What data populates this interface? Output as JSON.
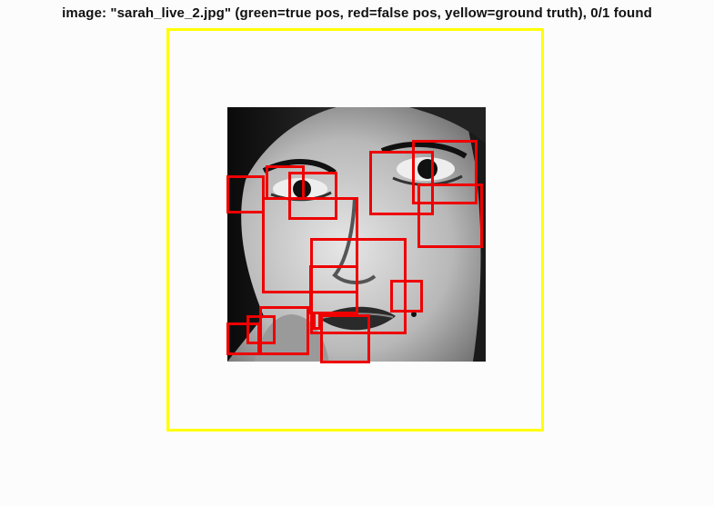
{
  "title": "image: \"sarah_live_2.jpg\" (green=true pos, red=false pos, yellow=ground truth), 0/1 found",
  "colors": {
    "ground_truth": "#ffff00",
    "false_positive": "#ee0000",
    "true_positive": "#00cc00",
    "background": "#fcfcfc"
  },
  "image": {
    "filename": "sarah_live_2.jpg"
  },
  "stats": {
    "found": 0,
    "total": 1
  }
}
